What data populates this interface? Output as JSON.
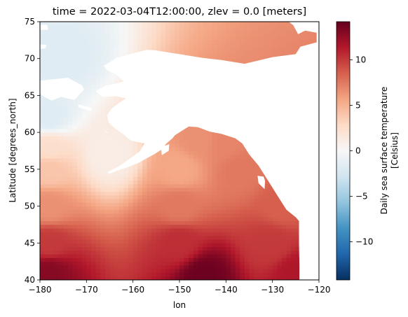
{
  "chart_data": {
    "type": "heatmap",
    "title": "time = 2022-03-04T12:00:00, zlev = 0.0 [meters]",
    "xlabel": "lon",
    "ylabel": "Latitude [degrees_north]",
    "xlim": [
      -180,
      -120
    ],
    "ylim": [
      40,
      75
    ],
    "x_ticks": [
      -180,
      -170,
      -160,
      -150,
      -140,
      -130,
      -120
    ],
    "x_tick_labels": [
      "−180",
      "−170",
      "−160",
      "−150",
      "−140",
      "−130",
      "−120"
    ],
    "y_ticks": [
      40,
      45,
      50,
      55,
      60,
      65,
      70,
      75
    ],
    "y_tick_labels": [
      "40",
      "45",
      "50",
      "55",
      "60",
      "65",
      "70",
      "75"
    ],
    "colorbar": {
      "label_line1": "Daily sea surface temperature",
      "label_line2": "[Celsius]",
      "vmin": -14.2,
      "vmax": 14.2,
      "ticks": [
        -10,
        -5,
        0,
        5,
        10
      ],
      "tick_labels": [
        "−10",
        "−5",
        "0",
        "5",
        "10"
      ],
      "colormap": "RdBu_r"
    },
    "grid": false,
    "land_color": "#ffffff",
    "sea_ice_value_celsius": -1.8,
    "field_samples": [
      {
        "lon": -178,
        "lat": 41,
        "value": 13.0
      },
      {
        "lon": -145,
        "lat": 40.5,
        "value": 14.0
      },
      {
        "lon": -125,
        "lat": 41,
        "value": 11.5
      },
      {
        "lon": -178,
        "lat": 45,
        "value": 10.0
      },
      {
        "lon": -150,
        "lat": 45,
        "value": 10.5
      },
      {
        "lon": -130,
        "lat": 45,
        "value": 10.0
      },
      {
        "lon": -178,
        "lat": 50,
        "value": 6.5
      },
      {
        "lon": -150,
        "lat": 50,
        "value": 7.5
      },
      {
        "lon": -128,
        "lat": 50,
        "value": 8.5
      },
      {
        "lon": -178,
        "lat": 55,
        "value": 4.0
      },
      {
        "lon": -150,
        "lat": 55,
        "value": 5.5
      },
      {
        "lon": -137,
        "lat": 55,
        "value": 7.5
      },
      {
        "lon": -178,
        "lat": 58,
        "value": 2.5
      },
      {
        "lon": -165,
        "lat": 57,
        "value": 1.0
      },
      {
        "lon": -146,
        "lat": 59,
        "value": 6.5
      },
      {
        "lon": -140,
        "lat": 58.5,
        "value": 7.0
      },
      {
        "lon": -178,
        "lat": 62,
        "value": -1.8
      },
      {
        "lon": -175,
        "lat": 70,
        "value": -1.8
      }
    ]
  }
}
